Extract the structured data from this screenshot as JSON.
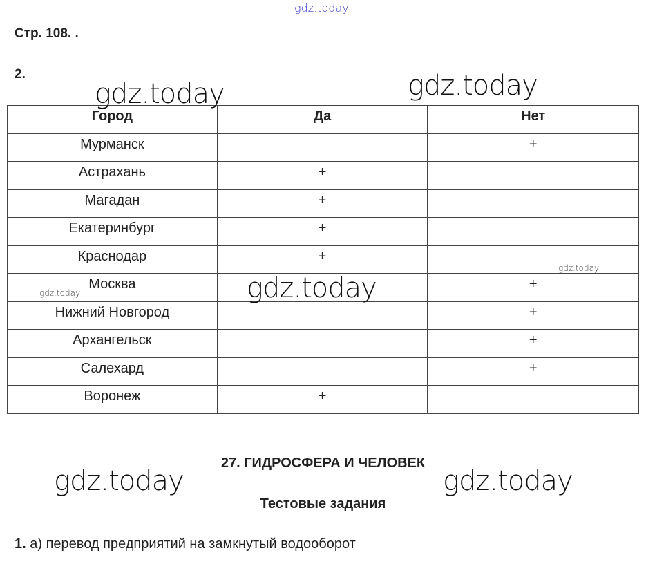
{
  "watermark": "gdz.today",
  "page_ref": "Стр. 108. .",
  "task_number": "2.",
  "table": {
    "headers": [
      "Город",
      "Да",
      "Нет"
    ],
    "rows": [
      [
        "Мурманск",
        "",
        "+"
      ],
      [
        "Астрахань",
        "+",
        ""
      ],
      [
        "Магадан",
        "+",
        ""
      ],
      [
        "Екатеринбург",
        "+",
        ""
      ],
      [
        "Краснодар",
        "+",
        ""
      ],
      [
        "Москва",
        "",
        "+"
      ],
      [
        "Нижний Новгород",
        "",
        "+"
      ],
      [
        "Архангельск",
        "",
        "+"
      ],
      [
        "Салехард",
        "",
        "+"
      ],
      [
        "Воронеж",
        "+",
        ""
      ]
    ]
  },
  "section": {
    "title": "27. ГИДРОСФЕРА И ЧЕЛОВЕК",
    "subtitle": "Тестовые задания"
  },
  "answer": {
    "number": "1.",
    "text": "а) перевод предприятий на замкнутый водооборот"
  }
}
